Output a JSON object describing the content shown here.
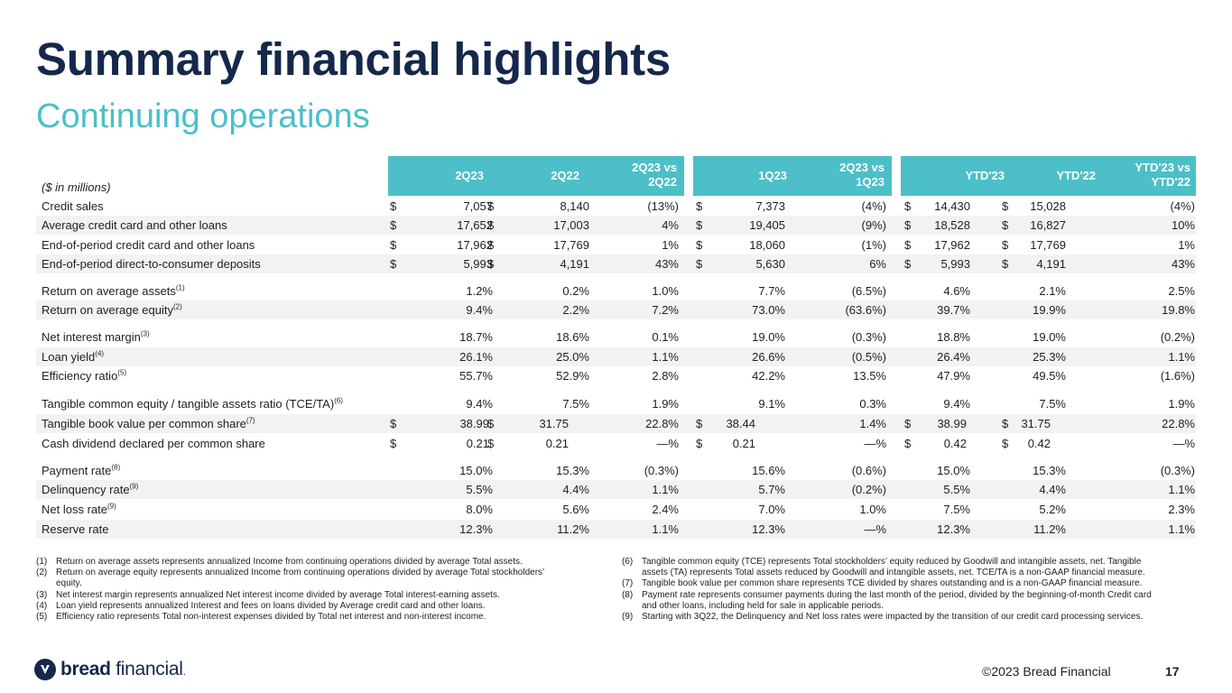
{
  "title": "Summary financial highlights",
  "subtitle": "Continuing operations",
  "units_label": "($ in millions)",
  "headers": {
    "h2q23": "2Q23",
    "h2q22": "2Q22",
    "vs1a": "2Q23 vs",
    "vs1b": "2Q22",
    "h1q23": "1Q23",
    "vs2a": "2Q23 vs",
    "vs2b": "1Q23",
    "ytd23": "YTD'23",
    "ytd22": "YTD'22",
    "vs3a": "YTD'23 vs",
    "vs3b": "YTD'22"
  },
  "rows": [
    {
      "label": "Credit sales",
      "sup": "",
      "d1": "$",
      "c1": "7,057",
      "d2": "$",
      "c2": "8,140",
      "c3": "(13%)",
      "d4": "$",
      "c4": "7,373",
      "c5": "(4%)",
      "d6": "$",
      "c6": "14,430",
      "d7": "$",
      "c7": "15,028",
      "c8": "(4%)"
    },
    {
      "label": "Average credit card and other loans",
      "sup": "",
      "d1": "$",
      "c1": "17,652",
      "d2": "$",
      "c2": "17,003",
      "c3": "4%",
      "d4": "$",
      "c4": "19,405",
      "c5": "(9%)",
      "d6": "$",
      "c6": "18,528",
      "d7": "$",
      "c7": "16,827",
      "c8": "10%"
    },
    {
      "label": "End-of-period credit card and other loans",
      "sup": "",
      "d1": "$",
      "c1": "17,962",
      "d2": "$",
      "c2": "17,769",
      "c3": "1%",
      "d4": "$",
      "c4": "18,060",
      "c5": "(1%)",
      "d6": "$",
      "c6": "17,962",
      "d7": "$",
      "c7": "17,769",
      "c8": "1%"
    },
    {
      "label": "End-of-period direct-to-consumer deposits",
      "sup": "",
      "d1": "$",
      "c1": "5,993",
      "d2": "$",
      "c2": "4,191",
      "c3": "43%",
      "d4": "$",
      "c4": "5,630",
      "c5": "6%",
      "d6": "$",
      "c6": "5,993",
      "d7": "$",
      "c7": "4,191",
      "c8": "43%"
    },
    {
      "label": "Return on average assets",
      "sup": "(1)",
      "d1": "",
      "c1": "1.2%",
      "d2": "",
      "c2": "0.2%",
      "c3": "1.0%",
      "d4": "",
      "c4": "7.7%",
      "c5": "(6.5%)",
      "d6": "",
      "c6": "4.6%",
      "d7": "",
      "c7": "2.1%",
      "c8": "2.5%"
    },
    {
      "label": "Return on average equity",
      "sup": "(2)",
      "d1": "",
      "c1": "9.4%",
      "d2": "",
      "c2": "2.2%",
      "c3": "7.2%",
      "d4": "",
      "c4": "73.0%",
      "c5": "(63.6%)",
      "d6": "",
      "c6": "39.7%",
      "d7": "",
      "c7": "19.9%",
      "c8": "19.8%"
    },
    {
      "label": "Net interest margin",
      "sup": "(3)",
      "d1": "",
      "c1": "18.7%",
      "d2": "",
      "c2": "18.6%",
      "c3": "0.1%",
      "d4": "",
      "c4": "19.0%",
      "c5": "(0.3%)",
      "d6": "",
      "c6": "18.8%",
      "d7": "",
      "c7": "19.0%",
      "c8": "(0.2%)"
    },
    {
      "label": "Loan yield",
      "sup": "(4)",
      "d1": "",
      "c1": "26.1%",
      "d2": "",
      "c2": "25.0%",
      "c3": "1.1%",
      "d4": "",
      "c4": "26.6%",
      "c5": "(0.5%)",
      "d6": "",
      "c6": "26.4%",
      "d7": "",
      "c7": "25.3%",
      "c8": "1.1%"
    },
    {
      "label": "Efficiency ratio",
      "sup": "(5)",
      "d1": "",
      "c1": "55.7%",
      "d2": "",
      "c2": "52.9%",
      "c3": "2.8%",
      "d4": "",
      "c4": "42.2%",
      "c5": "13.5%",
      "d6": "",
      "c6": "47.9%",
      "d7": "",
      "c7": "49.5%",
      "c8": "(1.6%)"
    },
    {
      "label": "Tangible common equity / tangible assets ratio (TCE/TA)",
      "sup": "(6)",
      "d1": "",
      "c1": "9.4%",
      "d2": "",
      "c2": "7.5%",
      "c3": "1.9%",
      "d4": "",
      "c4": "9.1%",
      "c5": "0.3%",
      "d6": "",
      "c6": "9.4%",
      "d7": "",
      "c7": "7.5%",
      "c8": "1.9%"
    },
    {
      "label": "Tangible book value per common share",
      "sup": "(7)",
      "d1": "$",
      "c1": "38.99",
      "d2": "$",
      "c2": "31.75",
      "c3": "22.8%",
      "d4": "$",
      "c4": "38.44",
      "c5": "1.4%",
      "d6": "$",
      "c6": "38.99",
      "d7": "$",
      "c7": "31.75",
      "c8": "22.8%"
    },
    {
      "label": "Cash dividend declared per common share",
      "sup": "",
      "d1": "$",
      "c1": "0.21",
      "d2": "$",
      "c2": "0.21",
      "c3": "—%",
      "d4": "$",
      "c4": "0.21",
      "c5": "—%",
      "d6": "$",
      "c6": "0.42",
      "d7": "$",
      "c7": "0.42",
      "c8": "—%"
    },
    {
      "label": "Payment rate",
      "sup": "(8)",
      "d1": "",
      "c1": "15.0%",
      "d2": "",
      "c2": "15.3%",
      "c3": "(0.3%)",
      "d4": "",
      "c4": "15.6%",
      "c5": "(0.6%)",
      "d6": "",
      "c6": "15.0%",
      "d7": "",
      "c7": "15.3%",
      "c8": "(0.3%)"
    },
    {
      "label": "Delinquency rate",
      "sup": "(9)",
      "d1": "",
      "c1": "5.5%",
      "d2": "",
      "c2": "4.4%",
      "c3": "1.1%",
      "d4": "",
      "c4": "5.7%",
      "c5": "(0.2%)",
      "d6": "",
      "c6": "5.5%",
      "d7": "",
      "c7": "4.4%",
      "c8": "1.1%"
    },
    {
      "label": "Net loss rate",
      "sup": "(9)",
      "d1": "",
      "c1": "8.0%",
      "d2": "",
      "c2": "5.6%",
      "c3": "2.4%",
      "d4": "",
      "c4": "7.0%",
      "c5": "1.0%",
      "d6": "",
      "c6": "7.5%",
      "d7": "",
      "c7": "5.2%",
      "c8": "2.3%"
    },
    {
      "label": "Reserve rate",
      "sup": "",
      "d1": "",
      "c1": "12.3%",
      "d2": "",
      "c2": "11.2%",
      "c3": "1.1%",
      "d4": "",
      "c4": "12.3%",
      "c5": "—%",
      "d6": "",
      "c6": "12.3%",
      "d7": "",
      "c7": "11.2%",
      "c8": "1.1%"
    }
  ],
  "footnotes_left": [
    {
      "num": "(1)",
      "lines": [
        "Return on average assets represents annualized Income from continuing operations divided by average Total assets."
      ]
    },
    {
      "num": "(2)",
      "lines": [
        "Return on average equity represents annualized Income from continuing operations divided by average Total stockholders’",
        "equity."
      ]
    },
    {
      "num": "(3)",
      "lines": [
        "Net interest margin represents annualized Net interest income divided by average Total interest-earning assets."
      ]
    },
    {
      "num": "(4)",
      "lines": [
        "Loan yield represents annualized Interest and fees on loans divided by Average credit card and other loans."
      ]
    },
    {
      "num": "(5)",
      "lines": [
        "Efficiency ratio represents Total non-interest expenses divided by Total net interest and non-interest income."
      ]
    }
  ],
  "footnotes_right": [
    {
      "num": "(6)",
      "lines": [
        "Tangible common equity (TCE) represents Total stockholders’ equity reduced by Goodwill and intangible assets, net. Tangible",
        "assets (TA) represents Total assets reduced by Goodwill and intangible assets, net. TCE/TA is a non-GAAP financial measure."
      ]
    },
    {
      "num": "(7)",
      "lines": [
        "Tangible book value per common share represents TCE divided by shares outstanding and is a non-GAAP financial measure."
      ]
    },
    {
      "num": "(8)",
      "lines": [
        "Payment rate represents consumer payments during the last month of the period, divided by the beginning-of-month Credit card",
        "and other loans, including held for sale in applicable periods."
      ]
    },
    {
      "num": "(9)",
      "lines": [
        "Starting with 3Q22, the Delinquency and Net loss rates were impacted by the transition of our credit card processing services."
      ]
    }
  ],
  "footer": {
    "logo_bold": "bread",
    "logo_rest": " financial",
    "logo_tm": ".",
    "copyright": "©2023 Bread Financial",
    "page": "17"
  },
  "colors": {
    "navy": "#15284b",
    "teal": "#4cbfc8",
    "shade": "#f2f2f2"
  }
}
